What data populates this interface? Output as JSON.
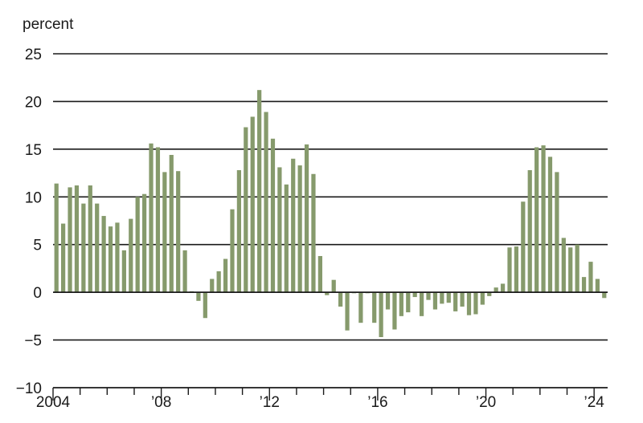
{
  "chart_data": {
    "type": "bar",
    "title": "",
    "xlabel": "",
    "ylabel": "percent",
    "ylim": [
      -10,
      25
    ],
    "yticks": [
      25,
      20,
      15,
      10,
      5,
      0,
      -5,
      -10
    ],
    "ytick_labels": [
      "25",
      "20",
      "15",
      "10",
      "5",
      "0",
      "−5",
      "−10"
    ],
    "x_start": "2004 Q1",
    "xticks": [
      {
        "quarter_index": 0,
        "label": "2004"
      },
      {
        "quarter_index": 16,
        "label": "’08"
      },
      {
        "quarter_index": 32,
        "label": "’12"
      },
      {
        "quarter_index": 48,
        "label": "’16"
      },
      {
        "quarter_index": 64,
        "label": "’20"
      },
      {
        "quarter_index": 80,
        "label": "’24"
      }
    ],
    "grid": true,
    "bar_color": "#869a6c",
    "values": [
      11.4,
      7.2,
      11.0,
      11.2,
      9.3,
      11.2,
      9.3,
      8.0,
      6.9,
      7.3,
      4.4,
      7.7,
      10.0,
      10.3,
      15.6,
      15.2,
      12.6,
      14.4,
      12.7,
      4.4,
      0.1,
      -0.9,
      -2.7,
      1.4,
      2.2,
      3.5,
      8.7,
      12.8,
      17.3,
      18.4,
      21.2,
      18.9,
      16.1,
      13.1,
      11.3,
      14.0,
      13.3,
      15.5,
      12.4,
      3.8,
      -0.3,
      1.3,
      -1.5,
      -4.0,
      -0.1,
      -3.2,
      -0.1,
      -3.2,
      -4.7,
      -1.8,
      -3.9,
      -2.5,
      -2.1,
      -0.5,
      -2.5,
      -0.8,
      -1.8,
      -1.2,
      -1.1,
      -2.0,
      -1.5,
      -2.4,
      -2.3,
      -1.3,
      -0.4,
      0.5,
      0.9,
      4.7,
      4.8,
      9.5,
      12.8,
      15.2,
      15.4,
      14.2,
      12.6,
      5.7,
      4.7,
      5.0,
      1.6,
      3.2,
      1.4,
      -0.6
    ]
  }
}
